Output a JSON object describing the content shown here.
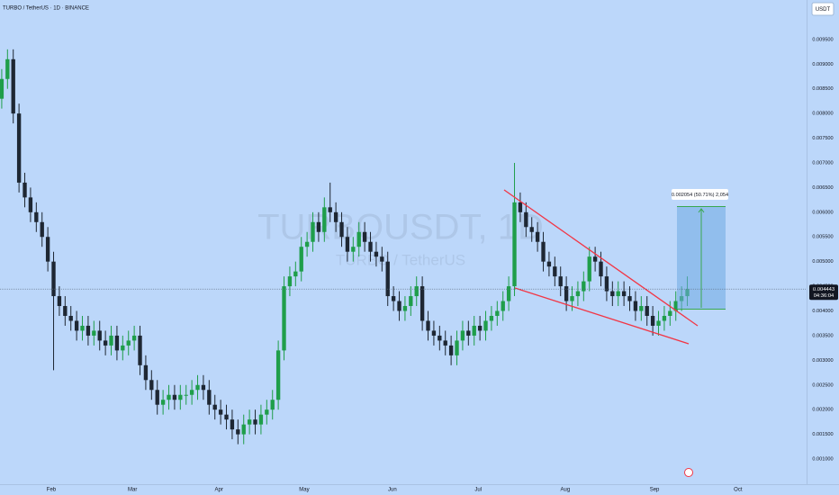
{
  "chart_data": {
    "type": "candlestick",
    "title": "TURBO / TetherUS · 1D · BINANCE",
    "watermark": "TURBOUSDT, 1D",
    "watermark_subtitle": "TURBO / TetherUS",
    "currency": "USDT",
    "measurement": "0.002054 (50.71%) 2,054",
    "countdown": "04:36:04",
    "last_price": {
      "value": 0.004443,
      "label": "0.004443"
    },
    "up_color": "#1f9e4a",
    "down_color": "#1e2733",
    "grid": false,
    "open": [
      0.0083,
      0.0087,
      0.0091,
      0.008,
      0.0066,
      0.0063,
      0.006,
      0.0058,
      0.0055,
      0.005,
      0.0043,
      0.0041,
      0.0039,
      0.0038,
      0.0036,
      0.0037,
      0.0035,
      0.0036,
      0.0034,
      0.0033,
      0.0035,
      0.0032,
      0.0033,
      0.0034,
      0.0035,
      0.0029,
      0.0026,
      0.0024,
      0.0021,
      0.0022,
      0.0023,
      0.0022,
      0.0023,
      0.0023,
      0.0024,
      0.0025,
      0.0024,
      0.0021,
      0.002,
      0.0019,
      0.0018,
      0.0016,
      0.0015,
      0.0017,
      0.0018,
      0.0017,
      0.0019,
      0.002,
      0.0022,
      0.0032,
      0.0045,
      0.0047,
      0.0048,
      0.0053,
      0.0054,
      0.0058,
      0.0056,
      0.0061,
      0.006,
      0.0058,
      0.0055,
      0.0052,
      0.0053,
      0.0056,
      0.0054,
      0.0052,
      0.0051,
      0.005,
      0.0043,
      0.0042,
      0.004,
      0.0041,
      0.0043,
      0.0045,
      0.0038,
      0.0036,
      0.0035,
      0.0034,
      0.0033,
      0.0031,
      0.0034,
      0.0036,
      0.0035,
      0.0037,
      0.0036,
      0.0038,
      0.0039,
      0.004,
      0.0042,
      0.0045,
      0.0062,
      0.006,
      0.0057,
      0.0056,
      0.0054,
      0.005,
      0.0049,
      0.0047,
      0.0045,
      0.0042,
      0.0043,
      0.0044,
      0.0046,
      0.0051,
      0.005,
      0.0047,
      0.0044,
      0.0043,
      0.0044,
      0.0043,
      0.0042,
      0.004,
      0.0041,
      0.0039,
      0.0037,
      0.0038,
      0.0039,
      0.004,
      0.0042,
      0.0043
    ],
    "high": [
      0.0089,
      0.0093,
      0.0093,
      0.0082,
      0.0068,
      0.0065,
      0.0062,
      0.006,
      0.0057,
      0.0052,
      0.0045,
      0.0043,
      0.0041,
      0.004,
      0.0039,
      0.0039,
      0.0038,
      0.0038,
      0.0036,
      0.0037,
      0.0037,
      0.0035,
      0.0036,
      0.0037,
      0.0037,
      0.0031,
      0.0028,
      0.0026,
      0.0024,
      0.0025,
      0.0025,
      0.0025,
      0.0025,
      0.0026,
      0.0027,
      0.0027,
      0.0026,
      0.0023,
      0.0022,
      0.0021,
      0.002,
      0.0018,
      0.0019,
      0.002,
      0.002,
      0.0021,
      0.0022,
      0.0024,
      0.0034,
      0.0047,
      0.0049,
      0.005,
      0.0055,
      0.0056,
      0.006,
      0.006,
      0.0063,
      0.0066,
      0.0062,
      0.006,
      0.0057,
      0.0055,
      0.0058,
      0.0058,
      0.0056,
      0.0054,
      0.0053,
      0.0052,
      0.0045,
      0.0044,
      0.0043,
      0.0045,
      0.0047,
      0.0047,
      0.004,
      0.0038,
      0.0037,
      0.0036,
      0.0035,
      0.0036,
      0.0038,
      0.0038,
      0.0039,
      0.0039,
      0.004,
      0.0041,
      0.0042,
      0.0044,
      0.0047,
      0.007,
      0.0064,
      0.0062,
      0.0059,
      0.0058,
      0.0056,
      0.0052,
      0.0051,
      0.0049,
      0.0047,
      0.0045,
      0.0046,
      0.0048,
      0.0053,
      0.0053,
      0.0052,
      0.0049,
      0.0046,
      0.0046,
      0.0046,
      0.0045,
      0.0044,
      0.0043,
      0.0043,
      0.0041,
      0.004,
      0.0041,
      0.0042,
      0.0044,
      0.0045,
      0.0047
    ],
    "low": [
      0.0081,
      0.0085,
      0.0078,
      0.0064,
      0.0061,
      0.0058,
      0.0056,
      0.0053,
      0.0048,
      0.0028,
      0.0039,
      0.0037,
      0.0036,
      0.0034,
      0.0034,
      0.0033,
      0.0033,
      0.0032,
      0.0031,
      0.0031,
      0.003,
      0.003,
      0.0031,
      0.0032,
      0.0027,
      0.0024,
      0.0022,
      0.0019,
      0.0019,
      0.002,
      0.002,
      0.002,
      0.0021,
      0.0021,
      0.0022,
      0.0022,
      0.0019,
      0.0018,
      0.0017,
      0.0016,
      0.0014,
      0.0013,
      0.0013,
      0.0015,
      0.0015,
      0.0015,
      0.0017,
      0.0018,
      0.002,
      0.003,
      0.0043,
      0.0045,
      0.0046,
      0.0051,
      0.0052,
      0.0054,
      0.0054,
      0.0058,
      0.0056,
      0.0053,
      0.005,
      0.005,
      0.0051,
      0.0052,
      0.005,
      0.0049,
      0.0048,
      0.0041,
      0.004,
      0.0038,
      0.0038,
      0.0039,
      0.0041,
      0.0036,
      0.0034,
      0.0033,
      0.0032,
      0.0031,
      0.0029,
      0.0029,
      0.0032,
      0.0033,
      0.0033,
      0.0034,
      0.0034,
      0.0036,
      0.0037,
      0.0038,
      0.004,
      0.0043,
      0.0058,
      0.0055,
      0.0054,
      0.0052,
      0.0048,
      0.0047,
      0.0045,
      0.0043,
      0.004,
      0.004,
      0.0041,
      0.0042,
      0.0044,
      0.0048,
      0.0045,
      0.0042,
      0.0041,
      0.0041,
      0.0041,
      0.004,
      0.0038,
      0.0038,
      0.0037,
      0.0035,
      0.0035,
      0.0036,
      0.0037,
      0.0038,
      0.004,
      0.0041
    ],
    "close": [
      0.0087,
      0.0091,
      0.008,
      0.0066,
      0.0063,
      0.006,
      0.0058,
      0.0055,
      0.005,
      0.0043,
      0.0041,
      0.0039,
      0.0038,
      0.0036,
      0.0037,
      0.0035,
      0.0036,
      0.0034,
      0.0033,
      0.0035,
      0.0032,
      0.0033,
      0.0034,
      0.0035,
      0.0029,
      0.0026,
      0.0024,
      0.0021,
      0.0022,
      0.0023,
      0.0022,
      0.0023,
      0.0023,
      0.0024,
      0.0025,
      0.0024,
      0.0021,
      0.002,
      0.0019,
      0.0018,
      0.0016,
      0.0015,
      0.0017,
      0.0018,
      0.0017,
      0.0019,
      0.002,
      0.0022,
      0.0032,
      0.0045,
      0.0047,
      0.0048,
      0.0053,
      0.0054,
      0.0058,
      0.0056,
      0.0061,
      0.006,
      0.0058,
      0.0055,
      0.0052,
      0.0053,
      0.0056,
      0.0054,
      0.0052,
      0.0051,
      0.005,
      0.0043,
      0.0042,
      0.004,
      0.0041,
      0.0043,
      0.0045,
      0.0038,
      0.0036,
      0.0035,
      0.0034,
      0.0033,
      0.0031,
      0.0034,
      0.0036,
      0.0035,
      0.0037,
      0.0036,
      0.0038,
      0.0039,
      0.004,
      0.0042,
      0.0045,
      0.0062,
      0.006,
      0.0057,
      0.0056,
      0.0054,
      0.005,
      0.0049,
      0.0047,
      0.0045,
      0.0042,
      0.0043,
      0.0044,
      0.0046,
      0.0051,
      0.005,
      0.0047,
      0.0044,
      0.0043,
      0.0044,
      0.0043,
      0.0042,
      0.004,
      0.0041,
      0.0039,
      0.0037,
      0.0038,
      0.0039,
      0.004,
      0.0042,
      0.0043,
      0.00444
    ],
    "xlim": [
      -0.3,
      139.7
    ],
    "xticks": [
      {
        "value": 8.6,
        "label": "Feb"
      },
      {
        "value": 22.7,
        "label": "Mar"
      },
      {
        "value": 37.7,
        "label": "Apr"
      },
      {
        "value": 52.5,
        "label": "May"
      },
      {
        "value": 67.8,
        "label": "Jun"
      },
      {
        "value": 82.7,
        "label": "Jul"
      },
      {
        "value": 97.8,
        "label": "Aug"
      },
      {
        "value": 113.3,
        "label": "Sep"
      },
      {
        "value": 127.8,
        "label": "Oct"
      }
    ],
    "ylim": [
      0.00049,
      0.0103
    ],
    "yticks": [
      {
        "value": 0.001,
        "label": "0.001000"
      },
      {
        "value": 0.0015,
        "label": "0.001500"
      },
      {
        "value": 0.002,
        "label": "0.002000"
      },
      {
        "value": 0.0025,
        "label": "0.002500"
      },
      {
        "value": 0.003,
        "label": "0.003000"
      },
      {
        "value": 0.0035,
        "label": "0.003500"
      },
      {
        "value": 0.004,
        "label": "0.004000"
      },
      {
        "value": 0.0045,
        "label": "0.004500"
      },
      {
        "value": 0.005,
        "label": "0.005000"
      },
      {
        "value": 0.0055,
        "label": "0.005500"
      },
      {
        "value": 0.006,
        "label": "0.006000"
      },
      {
        "value": 0.0065,
        "label": "0.006500"
      },
      {
        "value": 0.007,
        "label": "0.007000"
      },
      {
        "value": 0.0075,
        "label": "0.007500"
      },
      {
        "value": 0.008,
        "label": "0.008000"
      },
      {
        "value": 0.0085,
        "label": "0.008500"
      },
      {
        "value": 0.009,
        "label": "0.009000"
      },
      {
        "value": 0.0095,
        "label": "0.009500"
      }
    ]
  }
}
